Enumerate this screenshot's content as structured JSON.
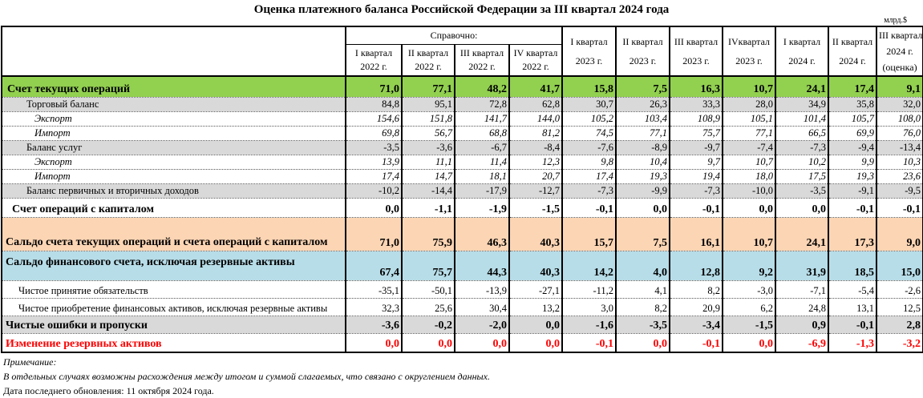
{
  "title": "Оценка платежного баланса Российской Федерации за III квартал 2024 года",
  "unit": "млрд.$",
  "header": {
    "reference": "Справочно:",
    "columns": [
      [
        "I квартал",
        "2022 г."
      ],
      [
        "II квартал",
        "2022 г."
      ],
      [
        "III квартал",
        "2022 г."
      ],
      [
        "IV квартал",
        "2022 г."
      ],
      [
        "I квартал",
        "2023 г."
      ],
      [
        "II квартал",
        "2023 г."
      ],
      [
        "III квартал",
        "2023 г."
      ],
      [
        "IVквартал",
        "2023 г."
      ],
      [
        "I квартал",
        "2024 г."
      ],
      [
        "II квартал",
        "2024 г."
      ],
      [
        "III квартал",
        "2024 г.",
        "(оценка)"
      ]
    ]
  },
  "colors": {
    "green": "#92d050",
    "gray": "#d9d9d9",
    "peach": "#fcd5b4",
    "blue": "#b7dde8",
    "red": "#ff0000"
  },
  "rows": [
    {
      "label": "Счет текущих операций",
      "style": "green",
      "values": [
        "71,0",
        "77,1",
        "48,2",
        "41,7",
        "15,8",
        "7,5",
        "16,3",
        "10,7",
        "24,1",
        "17,4",
        "9,1"
      ]
    },
    {
      "label": "Торговый баланс",
      "style": "gray1",
      "values": [
        "84,8",
        "95,1",
        "72,8",
        "62,8",
        "30,7",
        "26,3",
        "33,3",
        "28,0",
        "34,9",
        "35,8",
        "32,0"
      ]
    },
    {
      "label": "Экспорт",
      "style": "ital",
      "values": [
        "154,6",
        "151,8",
        "141,7",
        "144,0",
        "105,2",
        "103,4",
        "108,9",
        "105,1",
        "101,4",
        "105,7",
        "108,0"
      ]
    },
    {
      "label": "Импорт",
      "style": "ital",
      "values": [
        "69,8",
        "56,7",
        "68,8",
        "81,2",
        "74,5",
        "77,1",
        "75,7",
        "77,1",
        "66,5",
        "69,9",
        "76,0"
      ]
    },
    {
      "label": "Баланс услуг",
      "style": "gray1",
      "values": [
        "-3,5",
        "-3,6",
        "-6,7",
        "-8,4",
        "-7,6",
        "-8,9",
        "-9,7",
        "-7,4",
        "-7,3",
        "-9,4",
        "-13,4"
      ]
    },
    {
      "label": "Экспорт",
      "style": "ital",
      "values": [
        "13,9",
        "11,1",
        "11,4",
        "12,3",
        "9,8",
        "10,4",
        "9,7",
        "10,7",
        "10,2",
        "9,9",
        "10,3"
      ]
    },
    {
      "label": "Импорт",
      "style": "ital",
      "values": [
        "17,4",
        "14,7",
        "18,1",
        "20,7",
        "17,4",
        "19,3",
        "19,4",
        "18,0",
        "17,5",
        "19,3",
        "23,6"
      ]
    },
    {
      "label": "Баланс первичных и вторичных доходов",
      "style": "gray1",
      "values": [
        "-10,2",
        "-14,4",
        "-17,9",
        "-12,7",
        "-7,3",
        "-9,9",
        "-7,3",
        "-10,0",
        "-3,5",
        "-9,1",
        "-9,5"
      ]
    },
    {
      "label": "Счет операций с капиталом",
      "style": "cap",
      "values": [
        "0,0",
        "-1,1",
        "-1,9",
        "-1,5",
        "-0,1",
        "0,0",
        "-0,1",
        "0,0",
        "0,0",
        "-0,1",
        "-0,1"
      ]
    },
    {
      "label": "Сальдо счета текущих операций и счета операций с капиталом",
      "style": "peach",
      "values": [
        "71,0",
        "75,9",
        "46,3",
        "40,3",
        "15,7",
        "7,5",
        "16,1",
        "10,7",
        "24,1",
        "17,3",
        "9,0"
      ]
    },
    {
      "label": "Сальдо финансового счета, исключая резервные активы",
      "style": "blue",
      "values": [
        "67,4",
        "75,7",
        "44,3",
        "40,3",
        "14,2",
        "4,0",
        "12,8",
        "9,2",
        "31,9",
        "18,5",
        "15,0"
      ]
    },
    {
      "label": "Чистое принятие обязательств",
      "style": "plain",
      "values": [
        "-35,1",
        "-50,1",
        "-13,9",
        "-27,1",
        "-11,2",
        "4,1",
        "8,2",
        "-3,0",
        "-7,1",
        "-5,4",
        "-2,6"
      ]
    },
    {
      "label": "Чистое приобретение финансовых активов, исключая резервные активы",
      "style": "plain",
      "values": [
        "32,3",
        "25,6",
        "30,4",
        "13,2",
        "3,0",
        "8,2",
        "20,9",
        "6,2",
        "24,8",
        "13,1",
        "12,5"
      ]
    },
    {
      "label": "Чистые ошибки и пропуски",
      "style": "gray2",
      "values": [
        "-3,6",
        "-0,2",
        "-2,0",
        "0,0",
        "-1,6",
        "-3,5",
        "-3,4",
        "-1,5",
        "0,9",
        "-0,1",
        "2,8"
      ]
    },
    {
      "label": "Изменение резервных активов",
      "style": "red",
      "values": [
        "0,0",
        "0,0",
        "0,0",
        "0,0",
        "-0,1",
        "0,0",
        "-0,1",
        "0,0",
        "-6,9",
        "-1,3",
        "-3,2"
      ]
    }
  ],
  "notes": {
    "heading": "Примечание:",
    "text": "В отдельных случаях возможны расхождения между итогом и суммой слагаемых, что связано с округлением данных.",
    "updated": "Дата последнего обновления: 11 октября 2024 года."
  }
}
